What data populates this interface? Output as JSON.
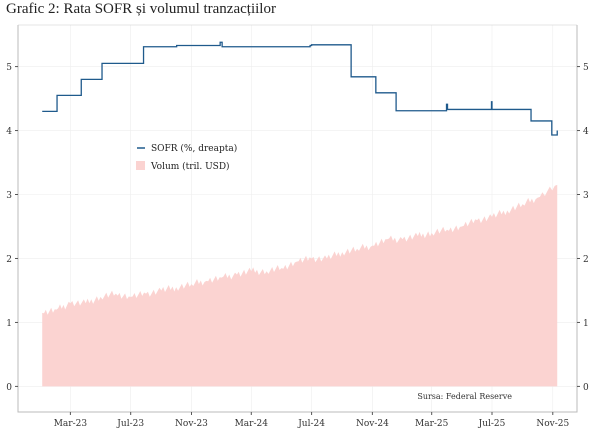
{
  "chart_data": {
    "type": "line",
    "title": "Grafic 2: Rata SOFR și volumul tranzacțiilor",
    "source": "Sursa: Federal Reserve",
    "x_ticks": [
      {
        "label": "Mar-23",
        "date": "2023-03-01"
      },
      {
        "label": "Jul-23",
        "date": "2023-07-01"
      },
      {
        "label": "Nov-23",
        "date": "2023-11-01"
      },
      {
        "label": "Mar-24",
        "date": "2024-03-01"
      },
      {
        "label": "Jul-24",
        "date": "2024-07-01"
      },
      {
        "label": "Nov-24",
        "date": "2024-11-01"
      },
      {
        "label": "Mar-25",
        "date": "2025-03-01"
      },
      {
        "label": "Jul-25",
        "date": "2025-07-01"
      },
      {
        "label": "Nov-25",
        "date": "2025-11-01"
      }
    ],
    "y_ticks": [
      "0",
      "1",
      "2",
      "3",
      "4",
      "5"
    ],
    "ylim": [
      -0.4,
      5.65
    ],
    "xlim": [
      "2022-11-15",
      "2025-12-20"
    ],
    "grid": true,
    "legend_placement": "center-left",
    "series": [
      {
        "name": "SOFR (%, dreapta)",
        "axis": "right",
        "kind": "step-line",
        "color": "#1f5a8c",
        "points": [
          [
            "2023-01-03",
            4.3
          ],
          [
            "2023-02-02",
            4.55
          ],
          [
            "2023-03-23",
            4.8
          ],
          [
            "2023-05-04",
            5.05
          ],
          [
            "2023-07-27",
            5.31
          ],
          [
            "2023-10-02",
            5.33
          ],
          [
            "2023-12-29",
            5.38
          ],
          [
            "2024-01-02",
            5.31
          ],
          [
            "2024-06-28",
            5.33
          ],
          [
            "2024-07-01",
            5.34
          ],
          [
            "2024-09-19",
            4.84
          ],
          [
            "2024-11-08",
            4.59
          ],
          [
            "2024-12-19",
            4.31
          ],
          [
            "2025-03-31",
            4.41
          ],
          [
            "2025-04-02",
            4.33
          ],
          [
            "2025-06-30",
            4.45
          ],
          [
            "2025-07-01",
            4.33
          ],
          [
            "2025-09-18",
            4.15
          ],
          [
            "2025-10-30",
            3.93
          ],
          [
            "2025-11-10",
            4.0
          ]
        ]
      },
      {
        "name": "Volum (tril. USD)",
        "axis": "left",
        "kind": "area",
        "color": "#fbd3d1",
        "points": [
          [
            "2023-01-03",
            1.15
          ],
          [
            "2023-02-01",
            1.2
          ],
          [
            "2023-03-01",
            1.3
          ],
          [
            "2023-04-01",
            1.3
          ],
          [
            "2023-05-01",
            1.4
          ],
          [
            "2023-06-01",
            1.45
          ],
          [
            "2023-07-01",
            1.4
          ],
          [
            "2023-08-01",
            1.45
          ],
          [
            "2023-09-01",
            1.5
          ],
          [
            "2023-10-01",
            1.55
          ],
          [
            "2023-11-01",
            1.6
          ],
          [
            "2023-12-01",
            1.65
          ],
          [
            "2024-01-01",
            1.7
          ],
          [
            "2024-02-01",
            1.75
          ],
          [
            "2024-03-01",
            1.8
          ],
          [
            "2024-04-01",
            1.8
          ],
          [
            "2024-05-01",
            1.85
          ],
          [
            "2024-06-01",
            1.95
          ],
          [
            "2024-07-01",
            2.0
          ],
          [
            "2024-08-01",
            2.0
          ],
          [
            "2024-09-01",
            2.1
          ],
          [
            "2024-10-01",
            2.15
          ],
          [
            "2024-11-01",
            2.2
          ],
          [
            "2024-12-01",
            2.3
          ],
          [
            "2025-01-01",
            2.3
          ],
          [
            "2025-02-01",
            2.35
          ],
          [
            "2025-03-01",
            2.4
          ],
          [
            "2025-04-01",
            2.45
          ],
          [
            "2025-05-01",
            2.5
          ],
          [
            "2025-06-01",
            2.6
          ],
          [
            "2025-07-01",
            2.65
          ],
          [
            "2025-08-01",
            2.75
          ],
          [
            "2025-09-01",
            2.85
          ],
          [
            "2025-10-01",
            2.95
          ],
          [
            "2025-11-10",
            3.15
          ]
        ]
      }
    ]
  }
}
